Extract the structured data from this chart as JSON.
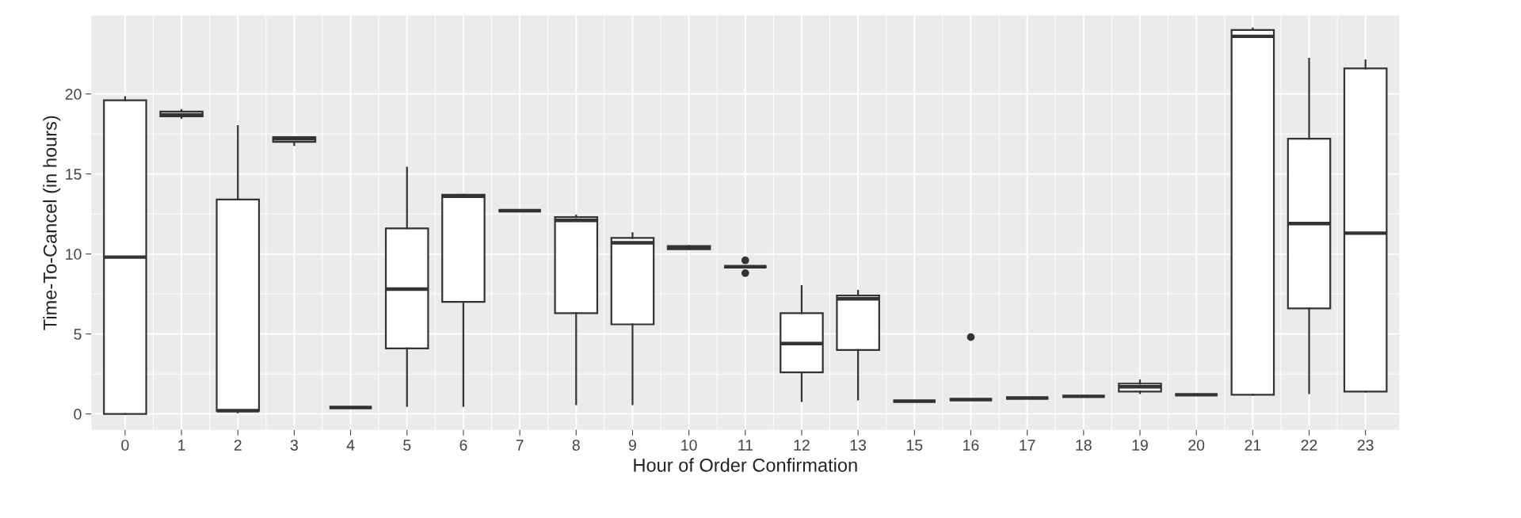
{
  "chart_data": {
    "type": "box",
    "xlabel": "Hour of Order Confirmation",
    "ylabel": "Time-To-Cancel (in hours)",
    "categories": [
      "0",
      "1",
      "2",
      "3",
      "4",
      "5",
      "6",
      "7",
      "8",
      "9",
      "10",
      "11",
      "12",
      "13",
      "15",
      "16",
      "17",
      "18",
      "19",
      "20",
      "21",
      "22",
      "23"
    ],
    "boxes": [
      {
        "low": 0,
        "q1": 0,
        "median": 9.8,
        "q3": 19.6,
        "high": 19.8
      },
      {
        "low": 18.5,
        "q1": 18.6,
        "median": 18.7,
        "q3": 18.9,
        "high": 19.0
      },
      {
        "low": 0.1,
        "q1": 0.2,
        "median": 0.2,
        "q3": 13.4,
        "high": 18.0
      },
      {
        "low": 16.8,
        "q1": 17.0,
        "median": 17.2,
        "q3": 17.3,
        "high": 17.3
      },
      {
        "low": 0.4,
        "q1": 0.4,
        "median": 0.4,
        "q3": 0.4,
        "high": 0.4
      },
      {
        "low": 0.5,
        "q1": 4.1,
        "median": 7.8,
        "q3": 11.6,
        "high": 15.4
      },
      {
        "low": 0.5,
        "q1": 7.0,
        "median": 13.6,
        "q3": 13.7,
        "high": 13.7
      },
      {
        "low": 12.7,
        "q1": 12.7,
        "median": 12.7,
        "q3": 12.7,
        "high": 12.7
      },
      {
        "low": 0.6,
        "q1": 6.3,
        "median": 12.1,
        "q3": 12.3,
        "high": 12.4
      },
      {
        "low": 0.6,
        "q1": 5.6,
        "median": 10.7,
        "q3": 11.0,
        "high": 11.3
      },
      {
        "low": 10.3,
        "q1": 10.3,
        "median": 10.4,
        "q3": 10.5,
        "high": 10.5
      },
      {
        "low": 9.2,
        "q1": 9.2,
        "median": 9.2,
        "q3": 9.2,
        "high": 9.2,
        "outliers": [
          9.6,
          8.8
        ]
      },
      {
        "low": 0.8,
        "q1": 2.6,
        "median": 4.4,
        "q3": 6.3,
        "high": 8.0
      },
      {
        "low": 0.9,
        "q1": 4.0,
        "median": 7.2,
        "q3": 7.4,
        "high": 7.7
      },
      {
        "low": 0.8,
        "q1": 0.8,
        "median": 0.8,
        "q3": 0.8,
        "high": 0.8
      },
      {
        "low": 0.9,
        "q1": 0.9,
        "median": 0.9,
        "q3": 0.9,
        "high": 0.9,
        "outliers": [
          4.8
        ]
      },
      {
        "low": 1.0,
        "q1": 1.0,
        "median": 1.0,
        "q3": 1.0,
        "high": 1.0
      },
      {
        "low": 1.1,
        "q1": 1.1,
        "median": 1.1,
        "q3": 1.1,
        "high": 1.1
      },
      {
        "low": 1.3,
        "q1": 1.4,
        "median": 1.7,
        "q3": 1.9,
        "high": 2.1
      },
      {
        "low": 1.2,
        "q1": 1.2,
        "median": 1.2,
        "q3": 1.2,
        "high": 1.2
      },
      {
        "low": 1.2,
        "q1": 1.2,
        "median": 23.6,
        "q3": 24.0,
        "high": 24.1
      },
      {
        "low": 1.3,
        "q1": 6.6,
        "median": 11.9,
        "q3": 17.2,
        "high": 22.2
      },
      {
        "low": 1.4,
        "q1": 1.4,
        "median": 11.3,
        "q3": 21.6,
        "high": 22.1
      }
    ],
    "color": "#333333",
    "ylim": [
      -1,
      24.9
    ],
    "yticks": [
      0,
      5,
      10,
      15,
      20
    ],
    "grid": true
  }
}
